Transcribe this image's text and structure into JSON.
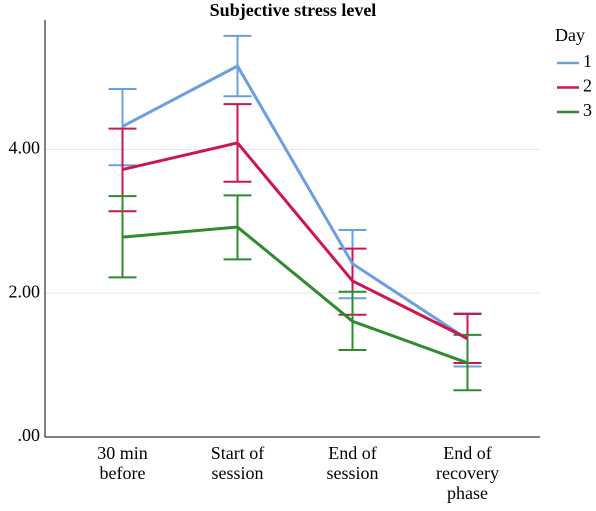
{
  "chart_data": {
    "type": "line",
    "title": "Subjective stress level",
    "categories": [
      [
        "30 min",
        "before"
      ],
      [
        "Start of",
        "session"
      ],
      [
        "End of",
        "session"
      ],
      [
        "End of",
        "recovery",
        "phase"
      ]
    ],
    "legend_title": "Day",
    "series": [
      {
        "name": "1",
        "color": "#6a9fe0",
        "values": [
          4.32,
          5.16,
          2.41,
          1.36
        ],
        "ci_low": [
          3.78,
          4.74,
          1.93,
          0.98
        ],
        "ci_high": [
          4.84,
          5.58,
          2.88,
          1.72
        ]
      },
      {
        "name": "2",
        "color": "#cc1650",
        "values": [
          3.72,
          4.09,
          2.17,
          1.37
        ],
        "ci_low": [
          3.14,
          3.55,
          1.7,
          1.03
        ],
        "ci_high": [
          4.29,
          4.63,
          2.62,
          1.71
        ]
      },
      {
        "name": "3",
        "color": "#2e8b2e",
        "values": [
          2.78,
          2.92,
          1.61,
          1.03
        ],
        "ci_low": [
          2.22,
          2.47,
          1.21,
          0.65
        ],
        "ci_high": [
          3.35,
          3.36,
          2.02,
          1.42
        ]
      }
    ],
    "ylim": [
      0,
      5.8
    ],
    "yticks": [
      {
        "value": 0,
        "label": ".00"
      },
      {
        "value": 2,
        "label": "2.00"
      },
      {
        "value": 4,
        "label": "4.00"
      }
    ],
    "grid": true
  }
}
